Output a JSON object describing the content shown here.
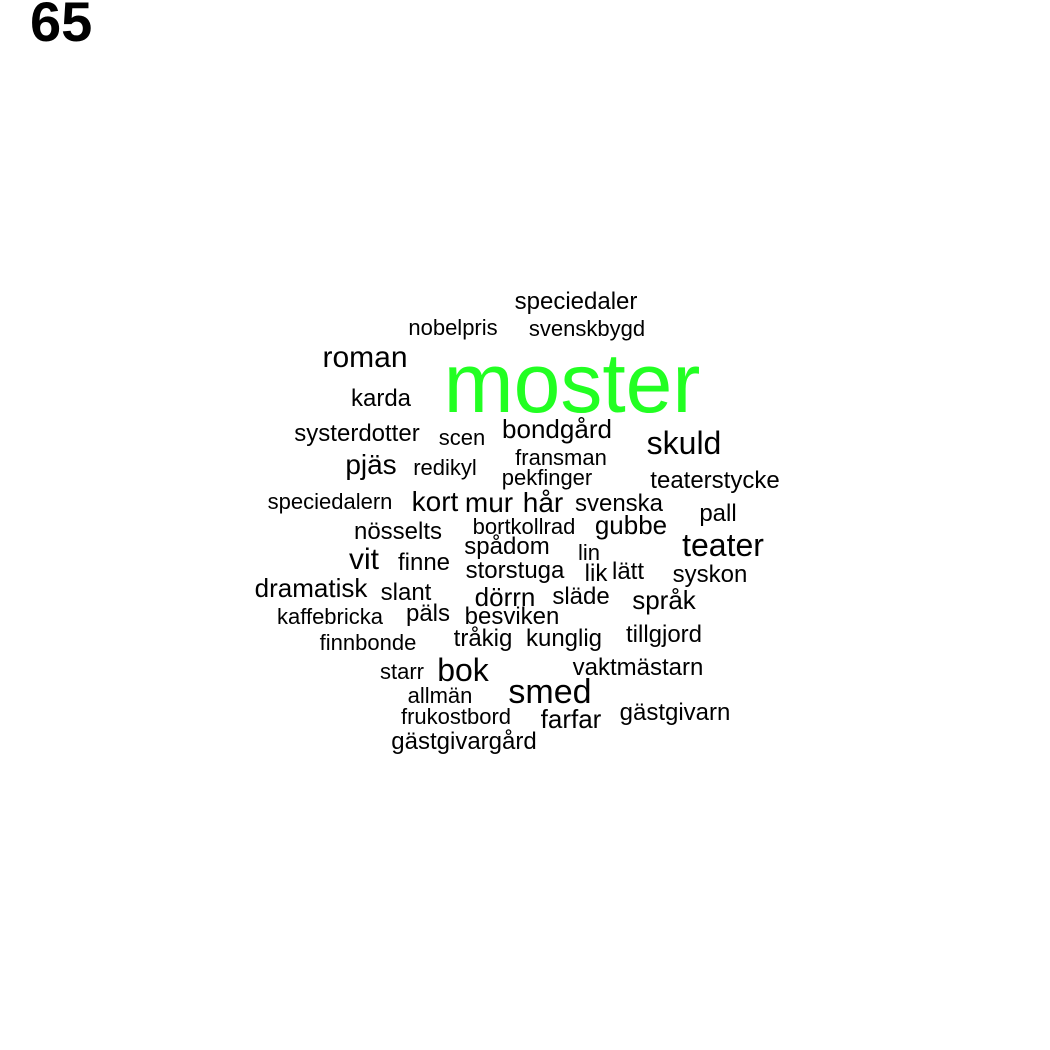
{
  "page_number": "65",
  "colors": {
    "highlight": "#22ff22",
    "text": "#000000"
  },
  "words": [
    "moster",
    "speciedaler",
    "nobelpris",
    "svenskbygd",
    "roman",
    "karda",
    "systerdotter",
    "scen",
    "bondgård",
    "skuld",
    "pjäs",
    "redikyl",
    "fransman",
    "pekfinger",
    "teaterstycke",
    "speciedalern",
    "kort",
    "mur",
    "hår",
    "svenska",
    "pall",
    "nösselts",
    "bortkollrad",
    "gubbe",
    "teater",
    "vit",
    "finne",
    "spådom",
    "lin",
    "dramatisk",
    "storstuga",
    "lik",
    "lätt",
    "syskon",
    "slant",
    "dörrn",
    "släde",
    "språk",
    "kaffebricka",
    "päls",
    "besviken",
    "finnbonde",
    "tråkig",
    "kunglig",
    "tillgjord",
    "starr",
    "bok",
    "vaktmästarn",
    "allmän",
    "smed",
    "frukostbord",
    "farfar",
    "gästgivarn",
    "gästgivargård"
  ]
}
